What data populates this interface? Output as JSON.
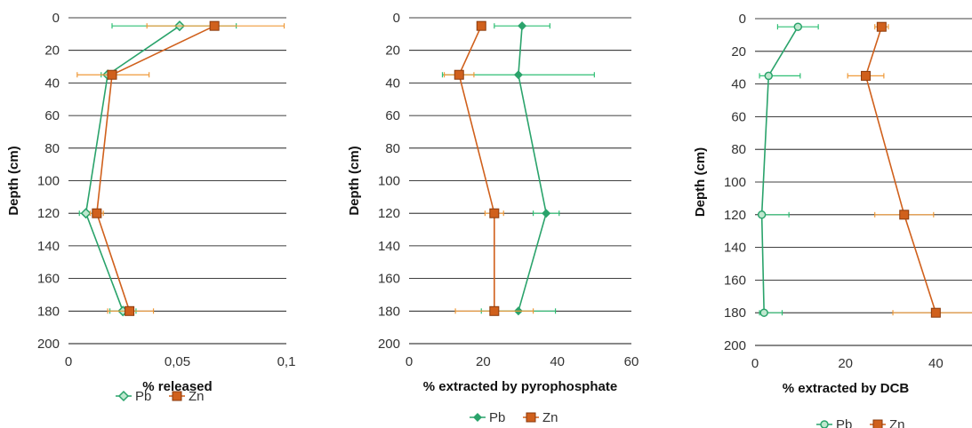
{
  "colors": {
    "Pb": "#2aa36b",
    "Zn": "#d0601c",
    "Pb_err": "#2fbf74",
    "Zn_err": "#ef9a3a",
    "grid": "#000000"
  },
  "chart_data": [
    {
      "type": "line",
      "xlabel": "% released",
      "ylabel": "Depth (cm)",
      "xlim": [
        0,
        0.1
      ],
      "ylim": [
        0,
        200
      ],
      "y_inverted": true,
      "x_ticks": [
        "0",
        "0,05",
        "0,1"
      ],
      "y_ticks": [
        "0",
        "20",
        "40",
        "60",
        "80",
        "100",
        "120",
        "140",
        "160",
        "180",
        "200"
      ],
      "grid": "horizontal",
      "legend": "bottom",
      "series": [
        {
          "name": "Pb",
          "marker": "diamond-open",
          "points": [
            {
              "x": 0.051,
              "y": 5,
              "err_low": 0.031,
              "err_high": 0.026
            },
            {
              "x": 0.018,
              "y": 35,
              "err_low": 0.003,
              "err_high": 0.003
            },
            {
              "x": 0.008,
              "y": 120,
              "err_low": 0.003,
              "err_high": 0.003
            },
            {
              "x": 0.025,
              "y": 180,
              "err_low": 0.006,
              "err_high": 0.006
            }
          ]
        },
        {
          "name": "Zn",
          "marker": "square",
          "points": [
            {
              "x": 0.067,
              "y": 5,
              "err_low": 0.031,
              "err_high": 0.032
            },
            {
              "x": 0.02,
              "y": 35,
              "err_low": 0.016,
              "err_high": 0.017
            },
            {
              "x": 0.013,
              "y": 120,
              "err_low": 0.003,
              "err_high": 0.003
            },
            {
              "x": 0.028,
              "y": 180,
              "err_low": 0.01,
              "err_high": 0.011
            }
          ]
        }
      ]
    },
    {
      "type": "line",
      "xlabel": "% extracted by pyrophosphate",
      "ylabel": "Depth (cm)",
      "xlim": [
        0,
        60
      ],
      "ylim": [
        0,
        200
      ],
      "y_inverted": true,
      "x_ticks": [
        "0",
        "20",
        "40",
        "60"
      ],
      "y_ticks": [
        "0",
        "20",
        "40",
        "60",
        "80",
        "100",
        "120",
        "140",
        "160",
        "180",
        "200"
      ],
      "grid": "horizontal",
      "legend": "bottom",
      "series": [
        {
          "name": "Pb",
          "marker": "diamond",
          "points": [
            {
              "x": 30.5,
              "y": 5,
              "err_low": 7.5,
              "err_high": 7.5
            },
            {
              "x": 29.5,
              "y": 35,
              "err_low": 20.5,
              "err_high": 20.5
            },
            {
              "x": 37,
              "y": 120,
              "err_low": 3.5,
              "err_high": 3.5
            },
            {
              "x": 29.5,
              "y": 180,
              "err_low": 10,
              "err_high": 10
            }
          ]
        },
        {
          "name": "Zn",
          "marker": "square",
          "points": [
            {
              "x": 19.5,
              "y": 5,
              "err_low": 0.8,
              "err_high": 0.8
            },
            {
              "x": 13.5,
              "y": 35,
              "err_low": 4,
              "err_high": 4
            },
            {
              "x": 23,
              "y": 120,
              "err_low": 2.5,
              "err_high": 2.5
            },
            {
              "x": 23,
              "y": 180,
              "err_low": 10.5,
              "err_high": 10.5
            }
          ]
        }
      ]
    },
    {
      "type": "line",
      "xlabel": "% extracted by DCB",
      "ylabel": "Depth (cm)",
      "xlim": [
        0,
        48
      ],
      "ylim": [
        0,
        200
      ],
      "y_inverted": true,
      "x_ticks": [
        "0",
        "20",
        "40"
      ],
      "x_tick_values": [
        0,
        20,
        40
      ],
      "y_ticks": [
        "0",
        "20",
        "40",
        "60",
        "80",
        "100",
        "120",
        "140",
        "160",
        "180",
        "200"
      ],
      "grid": "horizontal",
      "legend": "bottom",
      "series": [
        {
          "name": "Pb",
          "marker": "circle",
          "points": [
            {
              "x": 9.5,
              "y": 5,
              "err_low": 4.5,
              "err_high": 4.5
            },
            {
              "x": 3,
              "y": 35,
              "err_low": 2,
              "err_high": 7
            },
            {
              "x": 1.5,
              "y": 120,
              "err_low": 0.5,
              "err_high": 6
            },
            {
              "x": 2,
              "y": 180,
              "err_low": 1,
              "err_high": 4
            }
          ]
        },
        {
          "name": "Zn",
          "marker": "square",
          "points": [
            {
              "x": 28,
              "y": 5,
              "err_low": 1.5,
              "err_high": 1.5
            },
            {
              "x": 24.5,
              "y": 35,
              "err_low": 4,
              "err_high": 4
            },
            {
              "x": 33,
              "y": 120,
              "err_low": 6.5,
              "err_high": 6.5
            },
            {
              "x": 40,
              "y": 180,
              "err_low": 9.5,
              "err_high": 9.5
            }
          ]
        }
      ]
    }
  ]
}
